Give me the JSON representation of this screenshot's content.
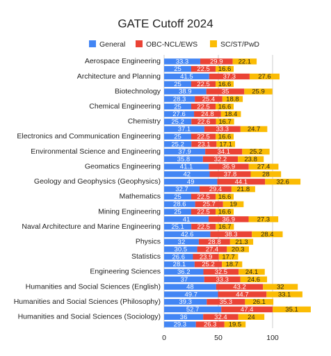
{
  "chart_data": {
    "type": "stacked-hbar",
    "title": "GATE Cutoff 2024",
    "categories": [
      "Aerospace Engineering",
      null,
      "Architecture and Planning",
      null,
      "Biotechnology",
      null,
      "Chemical Engineering",
      null,
      "Chemistry",
      null,
      "Electronics and Communication Engineering",
      null,
      "Environmental Science and Engineering",
      null,
      "Geomatics Engineering",
      null,
      "Geology and Geophysics (Geophysics)",
      null,
      "Mathematics",
      null,
      "Mining Engineering",
      null,
      "Naval Architecture and Marine Engineering",
      null,
      "Physics",
      null,
      "Statistics",
      null,
      "Engineering Sciences",
      null,
      "Humanities and Social Sciences (English)",
      null,
      "Humanities and Social Sciences (Philosophy)",
      null,
      "Humanities and Social Sciences (Sociology)",
      null
    ],
    "series": [
      {
        "name": "General",
        "color": "#4285f4",
        "values": [
          33.3,
          25,
          41.5,
          25,
          38.9,
          28.3,
          25,
          27.6,
          25.2,
          37.1,
          25,
          25.2,
          37.9,
          35.8,
          41.1,
          42,
          49,
          32.7,
          25,
          28.6,
          25,
          41,
          25.1,
          42.6,
          32,
          30.5,
          26.6,
          28.1,
          36.2,
          37,
          48,
          49.7,
          39.3,
          52.7,
          36,
          29.3
        ]
      },
      {
        "name": "OBC-NCL/EWS",
        "color": "#ea4335",
        "values": [
          29.9,
          22.5,
          37.3,
          22.5,
          35,
          25.4,
          22.5,
          24.8,
          22.6,
          33.3,
          22.5,
          23.1,
          34.1,
          32.2,
          36.9,
          37.8,
          44.1,
          29.4,
          22.5,
          25.7,
          22.5,
          36.9,
          22.5,
          38.3,
          28.8,
          27.4,
          23.9,
          25.2,
          32.5,
          33.3,
          43.2,
          44.7,
          35.3,
          47.4,
          32.4,
          26.3
        ]
      },
      {
        "name": "SC/ST/PwD",
        "color": "#fbbc04",
        "values": [
          22.1,
          16.6,
          27.6,
          16.6,
          25.9,
          18.8,
          16.6,
          18.4,
          16.7,
          24.7,
          16.6,
          17.1,
          25.2,
          23.8,
          27.4,
          28,
          32.6,
          21.8,
          16.6,
          19,
          16.6,
          27.3,
          16.7,
          28.4,
          21.3,
          20.3,
          17.7,
          18.7,
          24.1,
          24.6,
          32,
          33.1,
          26.1,
          35.1,
          24,
          19.5
        ]
      }
    ],
    "xlim": [
      0,
      150
    ],
    "xticks": [
      0,
      50,
      100
    ],
    "grid": true,
    "legend": "top"
  }
}
